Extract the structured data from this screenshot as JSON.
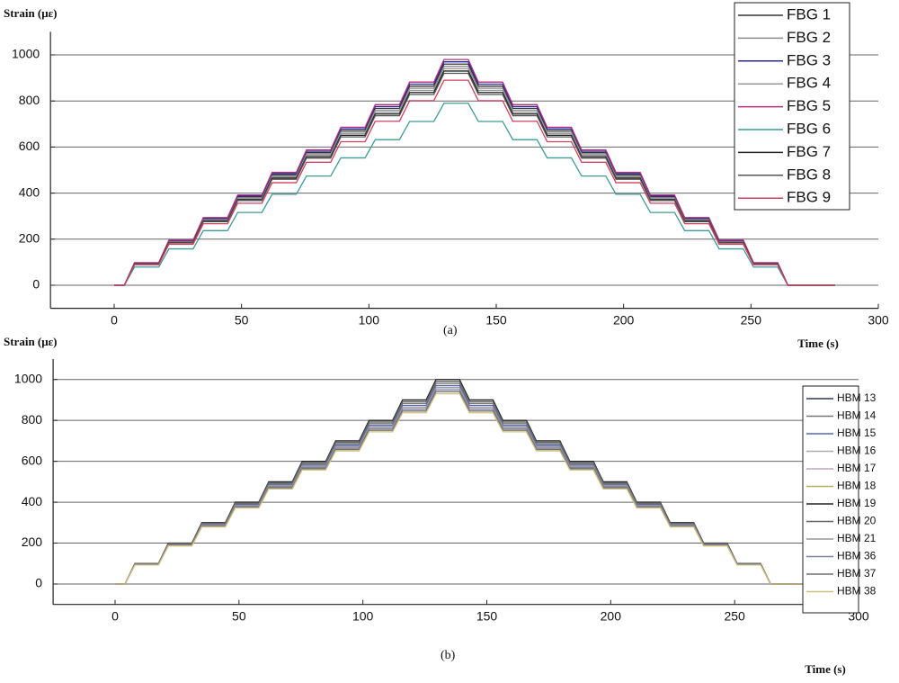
{
  "chart_data": [
    {
      "type": "line",
      "label": "(a)",
      "ylabel": "Strain (με)",
      "xlabel": "Time (s)",
      "xlim": [
        -25,
        300
      ],
      "ylim": [
        -100,
        1100
      ],
      "xticks": [
        0,
        50,
        100,
        150,
        200,
        250,
        300
      ],
      "yticks": [
        0,
        200,
        400,
        600,
        800,
        1000
      ],
      "grid": true,
      "legend": "upper right",
      "x": [
        0,
        4,
        8,
        17.5,
        21.5,
        31,
        35,
        44.5,
        48.5,
        58,
        62,
        71.5,
        75.5,
        85,
        89,
        98.5,
        102.5,
        112,
        116,
        125.5,
        129.5,
        139,
        143,
        152.5,
        156.5,
        166,
        170,
        179.5,
        183.5,
        193,
        197,
        206.5,
        210.5,
        220,
        224,
        233.5,
        237.5,
        247,
        251,
        260.5,
        264.5,
        283
      ],
      "series": [
        {
          "name": "FBG 1",
          "color": "#333333",
          "values": [
            0,
            0,
            96,
            96,
            192,
            192,
            288,
            288,
            384,
            384,
            480,
            480,
            576,
            576,
            672,
            672,
            768,
            768,
            864,
            864,
            960,
            960,
            864,
            864,
            768,
            768,
            672,
            672,
            576,
            576,
            480,
            480,
            384,
            384,
            288,
            288,
            192,
            192,
            96,
            96,
            0,
            0
          ]
        },
        {
          "name": "FBG 2",
          "color": "#8a8a8a",
          "values": [
            0,
            0,
            95,
            95,
            190,
            190,
            285,
            285,
            380,
            380,
            475,
            475,
            570,
            570,
            665,
            665,
            760,
            760,
            855,
            855,
            950,
            950,
            855,
            855,
            760,
            760,
            665,
            665,
            570,
            570,
            475,
            475,
            380,
            380,
            285,
            285,
            190,
            190,
            95,
            95,
            0,
            0
          ]
        },
        {
          "name": "FBG 3",
          "color": "#2a2aa0",
          "values": [
            0,
            0,
            97,
            97,
            194,
            194,
            291,
            291,
            388,
            388,
            485,
            485,
            582,
            582,
            679,
            679,
            776,
            776,
            873,
            873,
            970,
            970,
            873,
            873,
            776,
            776,
            679,
            679,
            582,
            582,
            485,
            485,
            388,
            388,
            291,
            291,
            194,
            194,
            97,
            97,
            0,
            0
          ]
        },
        {
          "name": "FBG 4",
          "color": "#9a9a9a",
          "values": [
            0,
            0,
            94,
            94,
            188,
            188,
            282,
            282,
            376,
            376,
            470,
            470,
            564,
            564,
            658,
            658,
            752,
            752,
            846,
            846,
            940,
            940,
            846,
            846,
            752,
            752,
            658,
            658,
            564,
            564,
            470,
            470,
            376,
            376,
            282,
            282,
            188,
            188,
            94,
            94,
            0,
            0
          ]
        },
        {
          "name": "FBG 5",
          "color": "#b0307a",
          "values": [
            0,
            0,
            98,
            98,
            196,
            196,
            294,
            294,
            392,
            392,
            490,
            490,
            588,
            588,
            686,
            686,
            784,
            784,
            882,
            882,
            980,
            980,
            882,
            882,
            784,
            784,
            686,
            686,
            588,
            588,
            490,
            490,
            392,
            392,
            294,
            294,
            196,
            196,
            98,
            98,
            0,
            0
          ]
        },
        {
          "name": "FBG 6",
          "color": "#3f9a9a",
          "values": [
            0,
            0,
            79,
            79,
            158,
            158,
            237,
            237,
            316,
            316,
            395,
            395,
            474,
            474,
            553,
            553,
            632,
            632,
            711,
            711,
            790,
            790,
            711,
            711,
            632,
            632,
            553,
            553,
            474,
            474,
            395,
            395,
            316,
            316,
            237,
            237,
            158,
            158,
            79,
            79,
            0,
            0
          ]
        },
        {
          "name": "FBG 7",
          "color": "#222222",
          "values": [
            0,
            0,
            93,
            93,
            186,
            186,
            279,
            279,
            372,
            372,
            465,
            465,
            558,
            558,
            651,
            651,
            744,
            744,
            837,
            837,
            930,
            930,
            837,
            837,
            744,
            744,
            651,
            651,
            558,
            558,
            465,
            465,
            372,
            372,
            279,
            279,
            186,
            186,
            93,
            93,
            0,
            0
          ]
        },
        {
          "name": "FBG 8",
          "color": "#555555",
          "values": [
            0,
            0,
            92,
            92,
            184,
            184,
            276,
            276,
            368,
            368,
            460,
            460,
            552,
            552,
            644,
            644,
            736,
            736,
            828,
            828,
            920,
            920,
            828,
            828,
            736,
            736,
            644,
            644,
            552,
            552,
            460,
            460,
            368,
            368,
            276,
            276,
            184,
            184,
            92,
            92,
            0,
            0
          ]
        },
        {
          "name": "FBG 9",
          "color": "#d04060",
          "values": [
            0,
            0,
            89,
            89,
            178,
            178,
            267,
            267,
            356,
            356,
            445,
            445,
            534,
            534,
            623,
            623,
            712,
            712,
            801,
            801,
            890,
            890,
            801,
            801,
            712,
            712,
            623,
            623,
            534,
            534,
            445,
            445,
            356,
            356,
            267,
            267,
            178,
            178,
            89,
            89,
            0,
            0
          ]
        }
      ]
    },
    {
      "type": "line",
      "label": "(b)",
      "ylabel": "Strain (με)",
      "xlabel": "Time (s)",
      "xlim": [
        -25,
        300
      ],
      "ylim": [
        -100,
        1100
      ],
      "xticks": [
        0,
        50,
        100,
        150,
        200,
        250,
        300
      ],
      "yticks": [
        0,
        200,
        400,
        600,
        800,
        1000
      ],
      "grid": true,
      "legend": "right",
      "x": [
        0,
        4,
        8,
        17.5,
        21.5,
        31,
        35,
        44.5,
        48.5,
        58,
        62,
        71.5,
        75.5,
        85,
        89,
        98.5,
        102.5,
        112,
        116,
        125.5,
        129.5,
        139,
        143,
        152.5,
        156.5,
        166,
        170,
        179.5,
        183.5,
        193,
        197,
        206.5,
        210.5,
        220,
        224,
        233.5,
        237.5,
        247,
        251,
        260.5,
        264.5,
        291
      ],
      "series": [
        {
          "name": "HBM 13",
          "color": "#333355",
          "values": [
            0,
            0,
            99,
            99,
            198,
            198,
            297,
            297,
            396,
            396,
            495,
            495,
            594,
            594,
            693,
            693,
            792,
            792,
            891,
            891,
            990,
            990,
            891,
            891,
            792,
            792,
            693,
            693,
            594,
            594,
            495,
            495,
            396,
            396,
            297,
            297,
            198,
            198,
            99,
            99,
            0,
            0
          ]
        },
        {
          "name": "HBM 14",
          "color": "#777777",
          "values": [
            0,
            0,
            98,
            98,
            196,
            196,
            294,
            294,
            392,
            392,
            490,
            490,
            588,
            588,
            686,
            686,
            784,
            784,
            882,
            882,
            980,
            980,
            882,
            882,
            784,
            784,
            686,
            686,
            588,
            588,
            490,
            490,
            392,
            392,
            294,
            294,
            196,
            196,
            98,
            98,
            0,
            0
          ]
        },
        {
          "name": "HBM 15",
          "color": "#5566aa",
          "values": [
            0,
            0,
            97,
            97,
            194,
            194,
            291,
            291,
            388,
            388,
            485,
            485,
            582,
            582,
            679,
            679,
            776,
            776,
            873,
            873,
            970,
            970,
            873,
            873,
            776,
            776,
            679,
            679,
            582,
            582,
            485,
            485,
            388,
            388,
            291,
            291,
            194,
            194,
            97,
            97,
            0,
            0
          ]
        },
        {
          "name": "HBM 16",
          "color": "#aaaaaa",
          "values": [
            0,
            0,
            96,
            96,
            192,
            192,
            288,
            288,
            384,
            384,
            480,
            480,
            576,
            576,
            672,
            672,
            768,
            768,
            864,
            864,
            960,
            960,
            864,
            864,
            768,
            768,
            672,
            672,
            576,
            576,
            480,
            480,
            384,
            384,
            288,
            288,
            192,
            192,
            96,
            96,
            0,
            0
          ]
        },
        {
          "name": "HBM 17",
          "color": "#c0a0c0",
          "values": [
            0,
            0,
            95,
            95,
            190,
            190,
            285,
            285,
            380,
            380,
            475,
            475,
            570,
            570,
            665,
            665,
            760,
            760,
            855,
            855,
            950,
            950,
            855,
            855,
            760,
            760,
            665,
            665,
            570,
            570,
            475,
            475,
            380,
            380,
            285,
            285,
            190,
            190,
            95,
            95,
            0,
            0
          ]
        },
        {
          "name": "HBM 18",
          "color": "#b0b060",
          "values": [
            0,
            0,
            94,
            94,
            188,
            188,
            282,
            282,
            376,
            376,
            470,
            470,
            564,
            564,
            658,
            658,
            752,
            752,
            846,
            846,
            940,
            940,
            846,
            846,
            752,
            752,
            658,
            658,
            564,
            564,
            470,
            470,
            376,
            376,
            282,
            282,
            188,
            188,
            94,
            94,
            0,
            0
          ]
        },
        {
          "name": "HBM 19",
          "color": "#222222",
          "values": [
            0,
            0,
            100,
            100,
            200,
            200,
            300,
            300,
            400,
            400,
            500,
            500,
            600,
            600,
            700,
            700,
            800,
            800,
            900,
            900,
            1000,
            1000,
            900,
            900,
            800,
            800,
            700,
            700,
            600,
            600,
            500,
            500,
            400,
            400,
            300,
            300,
            200,
            200,
            100,
            100,
            0,
            0
          ]
        },
        {
          "name": "HBM 20",
          "color": "#666666",
          "values": [
            0,
            0,
            99,
            99,
            198,
            198,
            297,
            297,
            396,
            396,
            495,
            495,
            594,
            594,
            693,
            693,
            792,
            792,
            891,
            891,
            990,
            990,
            891,
            891,
            792,
            792,
            693,
            693,
            594,
            594,
            495,
            495,
            396,
            396,
            297,
            297,
            198,
            198,
            99,
            99,
            0,
            0
          ]
        },
        {
          "name": "HBM 21",
          "color": "#999999",
          "values": [
            0,
            0,
            96,
            96,
            192,
            192,
            288,
            288,
            384,
            384,
            480,
            480,
            576,
            576,
            672,
            672,
            768,
            768,
            864,
            864,
            960,
            960,
            864,
            864,
            768,
            768,
            672,
            672,
            576,
            576,
            480,
            480,
            384,
            384,
            288,
            288,
            192,
            192,
            96,
            96,
            0,
            0
          ]
        },
        {
          "name": "HBM 36",
          "color": "#8080a0",
          "values": [
            0,
            0,
            95,
            95,
            190,
            190,
            285,
            285,
            380,
            380,
            475,
            475,
            570,
            570,
            665,
            665,
            760,
            760,
            855,
            855,
            950,
            950,
            855,
            855,
            760,
            760,
            665,
            665,
            570,
            570,
            475,
            475,
            380,
            380,
            285,
            285,
            190,
            190,
            95,
            95,
            0,
            0
          ]
        },
        {
          "name": "HBM 37",
          "color": "#707070",
          "values": [
            0,
            0,
            94,
            94,
            188,
            188,
            282,
            282,
            376,
            376,
            470,
            470,
            564,
            564,
            658,
            658,
            752,
            752,
            846,
            846,
            940,
            940,
            846,
            846,
            752,
            752,
            658,
            658,
            564,
            564,
            470,
            470,
            376,
            376,
            282,
            282,
            188,
            188,
            94,
            94,
            0,
            0
          ]
        },
        {
          "name": "HBM 38",
          "color": "#d0c080",
          "values": [
            0,
            0,
            93,
            93,
            186,
            186,
            279,
            279,
            372,
            372,
            465,
            465,
            558,
            558,
            651,
            651,
            744,
            744,
            837,
            837,
            930,
            930,
            837,
            837,
            744,
            744,
            651,
            651,
            558,
            558,
            465,
            465,
            372,
            372,
            279,
            279,
            186,
            186,
            93,
            93,
            0,
            0
          ]
        }
      ]
    }
  ]
}
